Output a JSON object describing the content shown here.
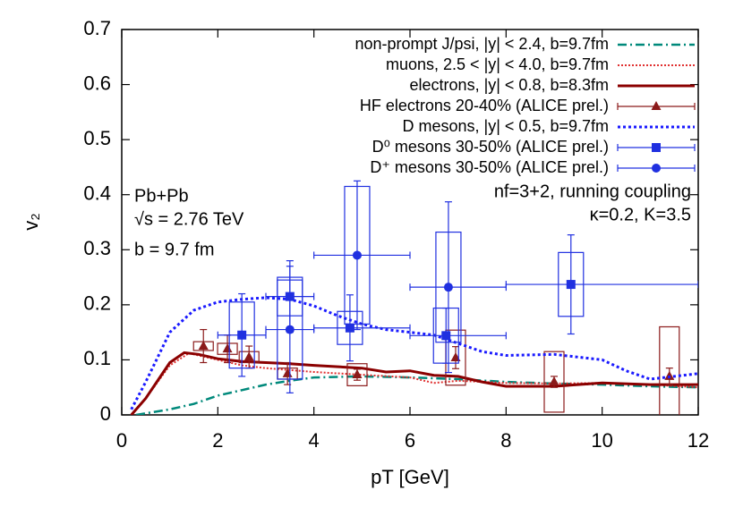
{
  "chart_data": {
    "type": "line",
    "x_label": "pT [GeV]",
    "y_label": "v₂",
    "xlim": [
      0,
      12
    ],
    "ylim": [
      0,
      0.7
    ],
    "xticks": [
      0,
      2,
      4,
      6,
      8,
      10,
      12
    ],
    "yticks": [
      0,
      0.1,
      0.2,
      0.3,
      0.4,
      0.5,
      0.6,
      0.7
    ],
    "legend": "top right",
    "annotations": [
      "Pb+Pb",
      "√s = 2.76 TeV",
      "b = 9.7 fm",
      "nf=3+2, running coupling",
      "κ=0.2, K=3.5"
    ],
    "series": [
      {
        "name": "non-prompt J/psi, |y| < 2.4, b=9.7fm",
        "color": "#00897b",
        "kind": "line",
        "dash": "10 4 2 4",
        "width": 2.5,
        "x": [
          0.3,
          1,
          1.5,
          2,
          2.5,
          3,
          3.5,
          4,
          5,
          6,
          7,
          8,
          9,
          10,
          11,
          12
        ],
        "values": [
          0,
          0.01,
          0.02,
          0.035,
          0.045,
          0.055,
          0.062,
          0.068,
          0.07,
          0.068,
          0.065,
          0.06,
          0.057,
          0.055,
          0.052,
          0.05
        ]
      },
      {
        "name": "muons, 2.5 < |y| < 4.0, b=9.7fm",
        "color": "#e03030",
        "kind": "line",
        "dash": "2 2",
        "width": 2,
        "x": [
          0.2,
          0.5,
          1,
          1.4,
          2,
          2.5,
          3,
          4,
          5,
          6,
          6.5,
          7,
          8,
          9,
          10,
          11,
          12
        ],
        "values": [
          0,
          0.03,
          0.09,
          0.112,
          0.1,
          0.09,
          0.085,
          0.078,
          0.073,
          0.068,
          0.058,
          0.062,
          0.058,
          0.057,
          0.058,
          0.055,
          0.05
        ]
      },
      {
        "name": "electrons, |y| < 0.8, b=8.3fm",
        "color": "#8b0000",
        "kind": "line",
        "dash": "none",
        "width": 3,
        "x": [
          0.2,
          0.5,
          1,
          1.3,
          1.6,
          2,
          2.5,
          3,
          3.5,
          4,
          5,
          5.5,
          6,
          6.5,
          7,
          7.5,
          8,
          9,
          10,
          11,
          12
        ],
        "values": [
          0,
          0.03,
          0.095,
          0.113,
          0.11,
          0.102,
          0.097,
          0.095,
          0.093,
          0.09,
          0.085,
          0.078,
          0.08,
          0.072,
          0.07,
          0.06,
          0.052,
          0.052,
          0.058,
          0.055,
          0.055
        ]
      },
      {
        "name": "HF electrons 20-40% (ALICE prel.)",
        "color": "#8b1a1a",
        "kind": "points",
        "marker": "triangle",
        "x": [
          1.7,
          2.2,
          2.65,
          3.45,
          4.9,
          6.95,
          9.0,
          11.4
        ],
        "values": [
          0.125,
          0.12,
          0.105,
          0.075,
          0.073,
          0.104,
          0.06,
          0.07
        ],
        "yerr": [
          0.03,
          0.025,
          0.02,
          0.02,
          0.01,
          0.02,
          0.01,
          0.015
        ],
        "sys": [
          0.008,
          0.01,
          0.01,
          0.01,
          0.02,
          0.05,
          0.055,
          0.09
        ]
      },
      {
        "name": "D mesons, |y| < 0.5, b=9.7fm",
        "color": "#1a1aff",
        "kind": "line",
        "dash": "3 3",
        "width": 3,
        "x": [
          0.2,
          0.5,
          1,
          1.5,
          2,
          2.5,
          3,
          3.5,
          4,
          4.5,
          5,
          5.5,
          6,
          6.5,
          7,
          7.5,
          8,
          9,
          10,
          10.5,
          11,
          11.5,
          12
        ],
        "values": [
          0.01,
          0.06,
          0.15,
          0.19,
          0.205,
          0.21,
          0.213,
          0.21,
          0.198,
          0.18,
          0.165,
          0.155,
          0.15,
          0.145,
          0.13,
          0.115,
          0.108,
          0.11,
          0.1,
          0.08,
          0.065,
          0.07,
          0.075
        ]
      },
      {
        "name": "D⁰ mesons 30-50% (ALICE prel.)",
        "color": "#2030e0",
        "kind": "points",
        "marker": "square",
        "x": [
          2.5,
          3.5,
          4.75,
          6.75,
          9.35
        ],
        "values": [
          0.145,
          0.215,
          0.158,
          0.144,
          0.237
        ],
        "x_low": [
          2,
          3,
          4,
          6,
          8
        ],
        "x_high": [
          3,
          4,
          6,
          8,
          12
        ],
        "yerr": [
          0.075,
          0.065,
          0.06,
          0.05,
          0.09
        ],
        "sys": [
          0.06,
          0.035,
          0.03,
          0.05,
          0.058
        ]
      },
      {
        "name": "D⁺ mesons 30-50% (ALICE prel.)",
        "color": "#2030e0",
        "kind": "points",
        "marker": "circle",
        "x": [
          3.5,
          4.9,
          6.8
        ],
        "values": [
          0.155,
          0.29,
          0.232
        ],
        "x_low": [
          3,
          4,
          6
        ],
        "x_high": [
          4,
          6,
          8
        ],
        "yerr": [
          0.115,
          0.135,
          0.155
        ],
        "sys": [
          0.09,
          0.125,
          0.1
        ]
      }
    ]
  }
}
